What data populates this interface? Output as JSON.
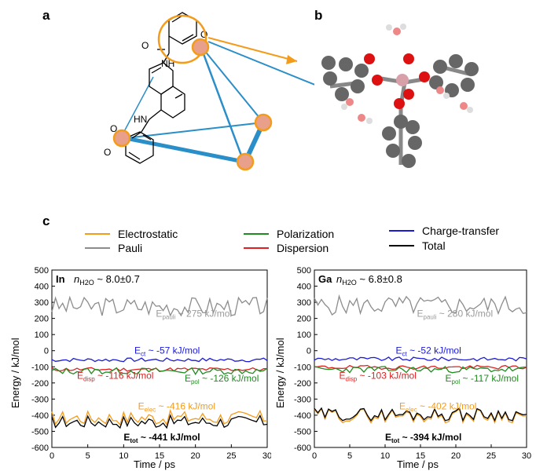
{
  "panels": {
    "a": "a",
    "b": "b",
    "c": "c"
  },
  "molecule": {
    "atom_nh_top": "NH",
    "atom_hn": "HN",
    "atom_o": "O"
  },
  "legend": [
    {
      "label": "Electrostatic",
      "color": "#f39c1c"
    },
    {
      "label": "Pauli",
      "color": "#8c8c8c"
    },
    {
      "label": "Polarization",
      "color": "#1e8c1e"
    },
    {
      "label": "Dispersion",
      "color": "#e02020"
    },
    {
      "label": "Charge-transfer",
      "color": "#1a1ad6"
    },
    {
      "label": "Total",
      "color": "#000000"
    }
  ],
  "axis": {
    "ylabel": "Energy / kJ/mol",
    "xlabel": "Time / ps"
  },
  "chart_data": [
    {
      "type": "line",
      "title": "In",
      "hydration": "8.0±0.7",
      "xlim": [
        0,
        30
      ],
      "ylim": [
        -600,
        500
      ],
      "xticks": [
        0,
        5,
        10,
        15,
        20,
        25,
        30
      ],
      "yticks": [
        500,
        400,
        300,
        200,
        100,
        0,
        -100,
        -200,
        -300,
        -400,
        -500,
        -600
      ],
      "annotations": {
        "pauli": "~ 275 kJ/mol",
        "ct": "~ -57 kJ/mol",
        "disp": "~ -116 kJ/mol",
        "pol": "~ -126 kJ/mol",
        "elec": "~ -416 kJ/mol",
        "tot": "~ -441 kJ/mol"
      },
      "series": [
        {
          "name": "Pauli",
          "color": "#8c8c8c",
          "mean": 275,
          "amp": 60,
          "seed": 3
        },
        {
          "name": "Charge-transfer",
          "color": "#1a1ad6",
          "mean": -57,
          "amp": 12,
          "seed": 7
        },
        {
          "name": "Dispersion",
          "color": "#e02020",
          "mean": -116,
          "amp": 12,
          "seed": 11
        },
        {
          "name": "Polarization",
          "color": "#1e8c1e",
          "mean": -126,
          "amp": 20,
          "seed": 13
        },
        {
          "name": "Electrostatic",
          "color": "#f39c1c",
          "mean": -416,
          "amp": 45,
          "seed": 17
        },
        {
          "name": "Total",
          "color": "#000000",
          "mean": -441,
          "amp": 40,
          "seed": 17
        }
      ]
    },
    {
      "type": "line",
      "title": "Ga",
      "hydration": "6.8±0.8",
      "xlim": [
        0,
        30
      ],
      "ylim": [
        -600,
        500
      ],
      "xticks": [
        0,
        5,
        10,
        15,
        20,
        25,
        30
      ],
      "yticks": [
        500,
        400,
        300,
        200,
        100,
        0,
        -100,
        -200,
        -300,
        -400,
        -500,
        -600
      ],
      "annotations": {
        "pauli": "~ 280 kJ/mol",
        "ct": "~ -52 kJ/mol",
        "disp": "~ -103 kJ/mol",
        "pol": "~ -117 kJ/mol",
        "elec": "~ -402 kJ/mol",
        "tot": "~ -394 kJ/mol"
      },
      "series": [
        {
          "name": "Pauli",
          "color": "#8c8c8c",
          "mean": 280,
          "amp": 60,
          "seed": 5
        },
        {
          "name": "Charge-transfer",
          "color": "#1a1ad6",
          "mean": -52,
          "amp": 12,
          "seed": 9
        },
        {
          "name": "Dispersion",
          "color": "#e02020",
          "mean": -103,
          "amp": 12,
          "seed": 19
        },
        {
          "name": "Polarization",
          "color": "#1e8c1e",
          "mean": -117,
          "amp": 20,
          "seed": 23
        },
        {
          "name": "Electrostatic",
          "color": "#f39c1c",
          "mean": -402,
          "amp": 45,
          "seed": 29
        },
        {
          "name": "Total",
          "color": "#000000",
          "mean": -394,
          "amp": 40,
          "seed": 29
        }
      ]
    }
  ]
}
